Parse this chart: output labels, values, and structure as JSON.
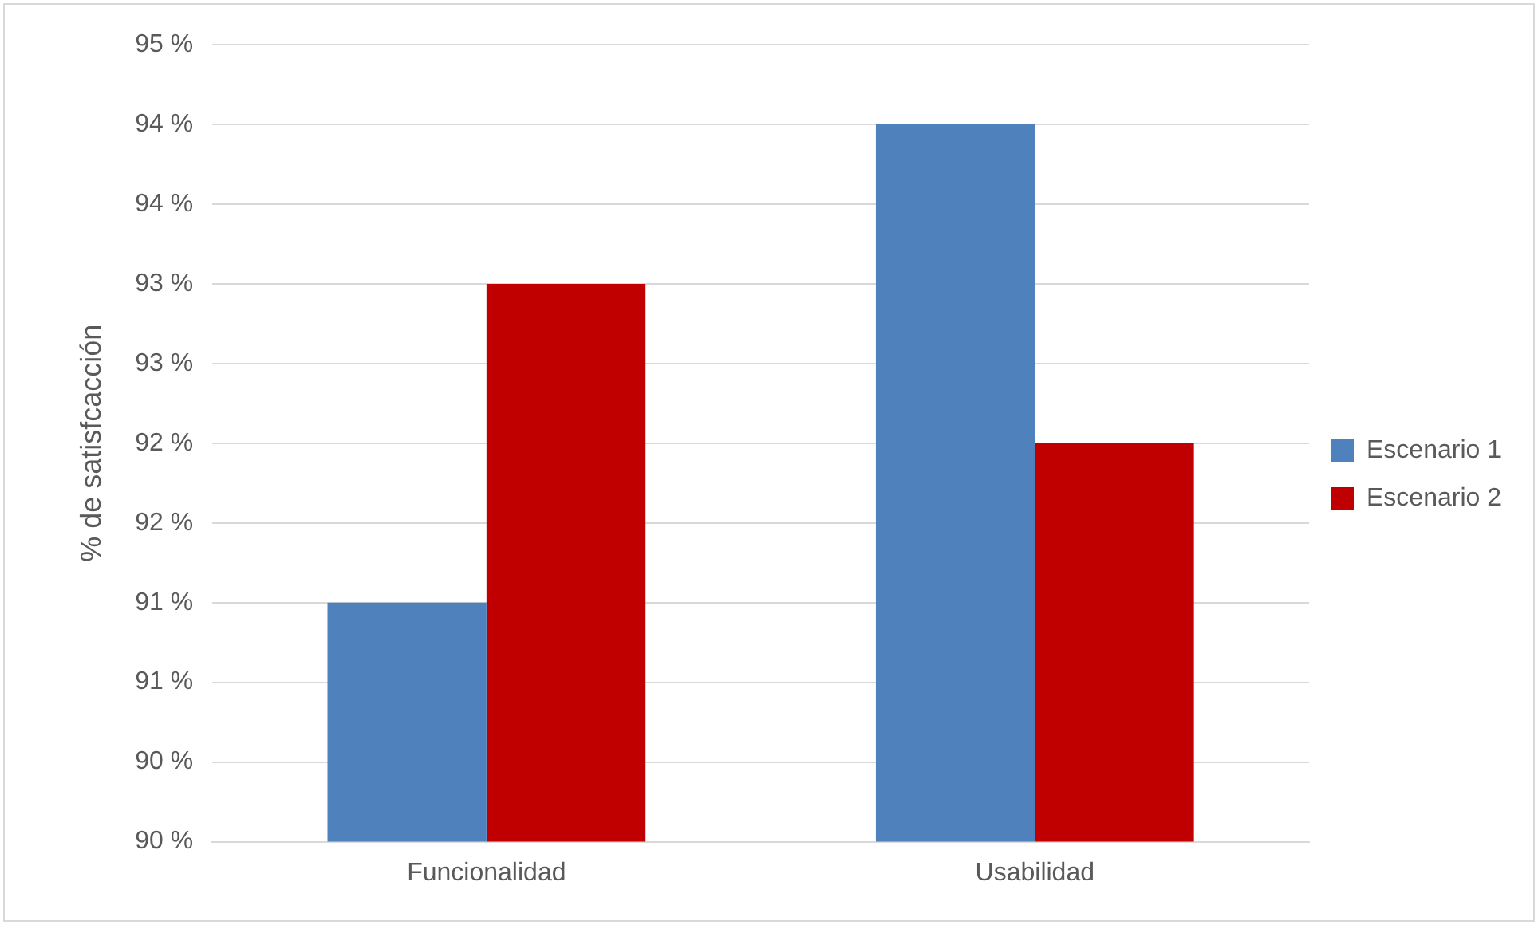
{
  "chart_data": {
    "type": "bar",
    "ylabel": "% de satisfcacción",
    "categories": [
      "Funcionalidad",
      "Usabilidad"
    ],
    "series": [
      {
        "name": "Escenario 1",
        "color": "#4f81bd",
        "values": [
          91.5,
          94.5
        ]
      },
      {
        "name": "Escenario 2",
        "color": "#c00000",
        "values": [
          93.5,
          92.5
        ]
      }
    ],
    "ylim": [
      90,
      95
    ],
    "yticks": [
      {
        "value": 90,
        "label": "90 %"
      },
      {
        "value": 90.5,
        "label": "90 %"
      },
      {
        "value": 91,
        "label": "91 %"
      },
      {
        "value": 91.5,
        "label": "91 %"
      },
      {
        "value": 92,
        "label": "92 %"
      },
      {
        "value": 92.5,
        "label": "92 %"
      },
      {
        "value": 93,
        "label": "93 %"
      },
      {
        "value": 93.5,
        "label": "93 %"
      },
      {
        "value": 94,
        "label": "94 %"
      },
      {
        "value": 94.5,
        "label": "94 %"
      },
      {
        "value": 95,
        "label": "95 %"
      }
    ],
    "grid": "y",
    "legend": "right"
  }
}
